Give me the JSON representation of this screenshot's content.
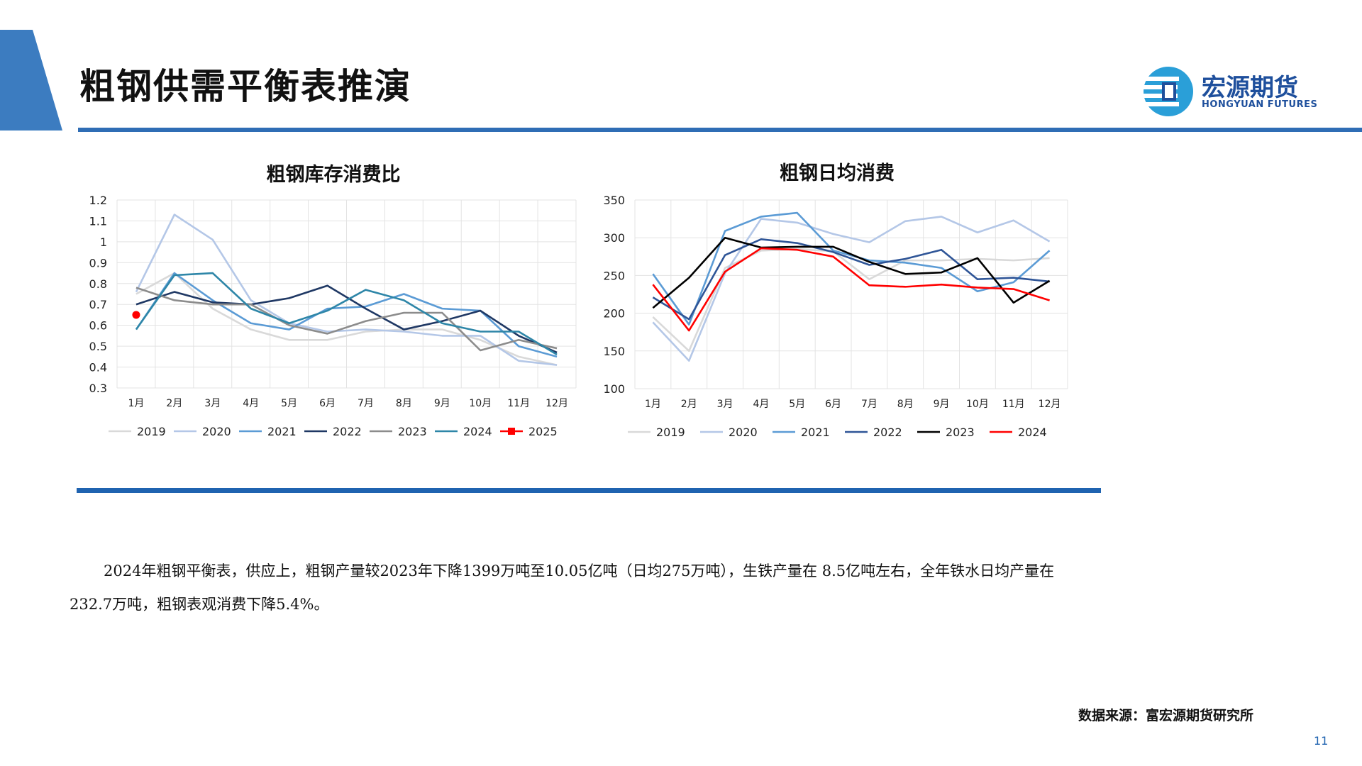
{
  "header": {
    "title": "粗钢供需平衡表推演",
    "logo_cn": "宏源期货",
    "logo_en": "HONGYUAN FUTURES",
    "accent_color": "#3c7cc0",
    "rule_color": "#2f6db5"
  },
  "chart_data": [
    {
      "type": "line",
      "title": "粗钢库存消费比",
      "categories": [
        "1月",
        "2月",
        "3月",
        "4月",
        "5月",
        "6月",
        "7月",
        "8月",
        "9月",
        "10月",
        "11月",
        "12月"
      ],
      "ylim": [
        0.3,
        1.2
      ],
      "yticks": [
        "0.3",
        "0.4",
        "0.5",
        "0.6",
        "0.7",
        "0.8",
        "0.9",
        "1",
        "1.1",
        "1.2"
      ],
      "grid": true,
      "legend_position": "bottom",
      "series": [
        {
          "name": "2019",
          "color": "#d9d9d9",
          "values": [
            0.75,
            0.85,
            0.68,
            0.58,
            0.53,
            0.53,
            0.57,
            0.58,
            0.58,
            0.53,
            0.45,
            0.41
          ]
        },
        {
          "name": "2020",
          "color": "#b4c7e7",
          "values": [
            0.76,
            1.13,
            1.01,
            0.72,
            0.61,
            0.57,
            0.58,
            0.57,
            0.55,
            0.55,
            0.43,
            0.41
          ]
        },
        {
          "name": "2021",
          "color": "#5b9bd5",
          "values": [
            0.58,
            0.85,
            0.72,
            0.61,
            0.58,
            0.68,
            0.69,
            0.75,
            0.68,
            0.67,
            0.5,
            0.45
          ]
        },
        {
          "name": "2022",
          "color": "#1f3864",
          "values": [
            0.7,
            0.76,
            0.71,
            0.7,
            0.73,
            0.79,
            0.68,
            0.58,
            0.62,
            0.67,
            0.55,
            0.47
          ]
        },
        {
          "name": "2023",
          "color": "#8c8c8c",
          "values": [
            0.78,
            0.72,
            0.7,
            0.7,
            0.6,
            0.56,
            0.62,
            0.66,
            0.66,
            0.48,
            0.53,
            0.49
          ]
        },
        {
          "name": "2024",
          "color": "#2e86a8",
          "values": [
            0.58,
            0.84,
            0.85,
            0.68,
            0.61,
            0.67,
            0.77,
            0.72,
            0.61,
            0.57,
            0.57,
            0.46
          ]
        },
        {
          "name": "2025",
          "color": "#ff0000",
          "values": [
            0.65,
            null,
            null,
            null,
            null,
            null,
            null,
            null,
            null,
            null,
            null,
            null
          ]
        }
      ]
    },
    {
      "type": "line",
      "title": "粗钢日均消费",
      "categories": [
        "1月",
        "2月",
        "3月",
        "4月",
        "5月",
        "6月",
        "7月",
        "8月",
        "9月",
        "10月",
        "11月",
        "12月"
      ],
      "ylim": [
        100,
        350
      ],
      "yticks": [
        "100",
        "150",
        "200",
        "250",
        "300",
        "350"
      ],
      "grid": true,
      "legend_position": "bottom",
      "series": [
        {
          "name": "2019",
          "color": "#d9d9d9",
          "values": [
            195,
            150,
            260,
            283,
            285,
            282,
            245,
            270,
            270,
            272,
            270,
            273
          ]
        },
        {
          "name": "2020",
          "color": "#b4c7e7",
          "values": [
            188,
            137,
            253,
            325,
            320,
            305,
            294,
            322,
            328,
            307,
            323,
            295
          ]
        },
        {
          "name": "2021",
          "color": "#5b9bd5",
          "values": [
            252,
            185,
            309,
            328,
            333,
            283,
            270,
            267,
            260,
            229,
            241,
            283
          ]
        },
        {
          "name": "2022",
          "color": "#2f5597",
          "values": [
            221,
            192,
            277,
            298,
            293,
            281,
            264,
            272,
            284,
            245,
            247,
            242
          ]
        },
        {
          "name": "2023",
          "color": "#000000",
          "values": [
            207,
            247,
            300,
            287,
            288,
            288,
            268,
            252,
            254,
            273,
            214,
            243
          ]
        },
        {
          "name": "2024",
          "color": "#ff0000",
          "values": [
            238,
            177,
            255,
            286,
            284,
            275,
            237,
            235,
            238,
            234,
            232,
            217
          ]
        }
      ]
    }
  ],
  "summary": {
    "text": "2024年粗钢平衡表，供应上，粗钢产量较2023年下降1399万吨至10.05亿吨（日均275万吨），生铁产量在 8.5亿吨左右，全年铁水日均产量在232.7万吨，粗钢表观消费下降5.4%。"
  },
  "footer": {
    "source": "数据来源：富宏源期货研究所",
    "page_number": "11"
  }
}
